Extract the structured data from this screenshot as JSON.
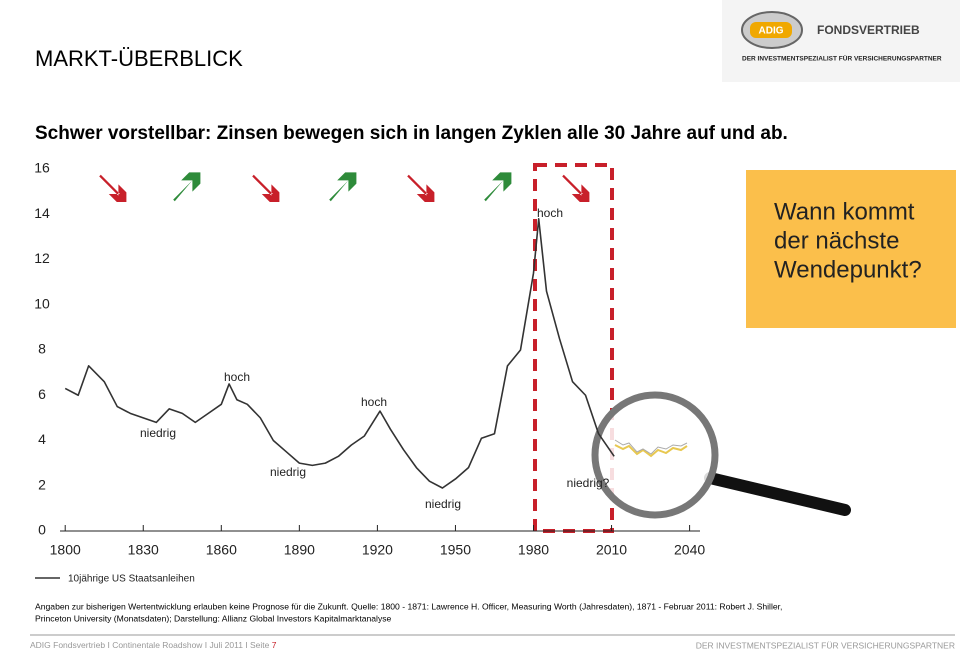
{
  "header": {
    "title": "MARKT-ÜBERBLICK",
    "logo": {
      "brand": "ADIG",
      "name": "FONDSVERTRIEB",
      "tagline": "DER INVESTMENTSPEZIALIST FÜR VERSICHERUNGSPARTNER"
    }
  },
  "subtitle": "Schwer vorstellbar: Zinsen bewegen sich in langen Zyklen alle 30 Jahre auf und ab.",
  "chart_data": {
    "type": "line",
    "x": [
      1800,
      1805,
      1809,
      1815,
      1820,
      1825,
      1830,
      1835,
      1840,
      1845,
      1850,
      1855,
      1860,
      1863,
      1866,
      1870,
      1875,
      1880,
      1885,
      1890,
      1895,
      1900,
      1905,
      1910,
      1915,
      1921,
      1925,
      1930,
      1935,
      1940,
      1945,
      1950,
      1955,
      1960,
      1965,
      1970,
      1975,
      1980,
      1982,
      1985,
      1990,
      1995,
      2000,
      2005,
      2011
    ],
    "series": [
      {
        "name": "10jährige US Staatsanleihen",
        "color": "#333333",
        "values": [
          6.3,
          6.0,
          7.3,
          6.6,
          5.5,
          5.2,
          5.0,
          4.8,
          5.4,
          5.2,
          4.8,
          5.2,
          5.6,
          6.5,
          5.8,
          5.6,
          5.0,
          4.0,
          3.5,
          3.0,
          2.9,
          3.0,
          3.3,
          3.8,
          4.2,
          5.3,
          4.5,
          3.6,
          2.8,
          2.2,
          1.9,
          2.3,
          2.8,
          4.1,
          4.3,
          7.3,
          8.0,
          11.4,
          13.8,
          10.6,
          8.5,
          6.6,
          6.0,
          4.3,
          3.3
        ]
      }
    ],
    "xlim": [
      1798,
      2044
    ],
    "xticks": [
      1800,
      1830,
      1860,
      1890,
      1920,
      1950,
      1980,
      2010,
      2040
    ],
    "ylim": [
      0,
      16
    ],
    "yticks": [
      0,
      2,
      4,
      6,
      8,
      10,
      12,
      14,
      16
    ],
    "annotations": [
      "hoch",
      "hoch",
      "hoch",
      "niedrig",
      "niedrig",
      "niedrig",
      "niedrig?"
    ]
  },
  "callout": [
    "Wann kommt",
    "der nächste",
    "Wendepunkt?"
  ],
  "footnote": [
    "Angaben zur bisherigen Wertentwicklung erlauben keine Prognose für die Zukunft. Quelle: 1800 - 1871: Lawrence H. Officer, Measuring Worth (Jahresdaten), 1871 - Februar 2011: Robert J. Shiller,",
    "Princeton University (Monatsdaten); Darstellung: Allianz Global Investors Kapitalmarktanalyse"
  ],
  "footer": {
    "left": "ADIG Fondsvertrieb I Continentale Roadshow I Juli 2011 I Seite",
    "page": "7",
    "right": "DER INVESTMENTSPEZIALIST FÜR VERSICHERUNGSPARTNER"
  }
}
